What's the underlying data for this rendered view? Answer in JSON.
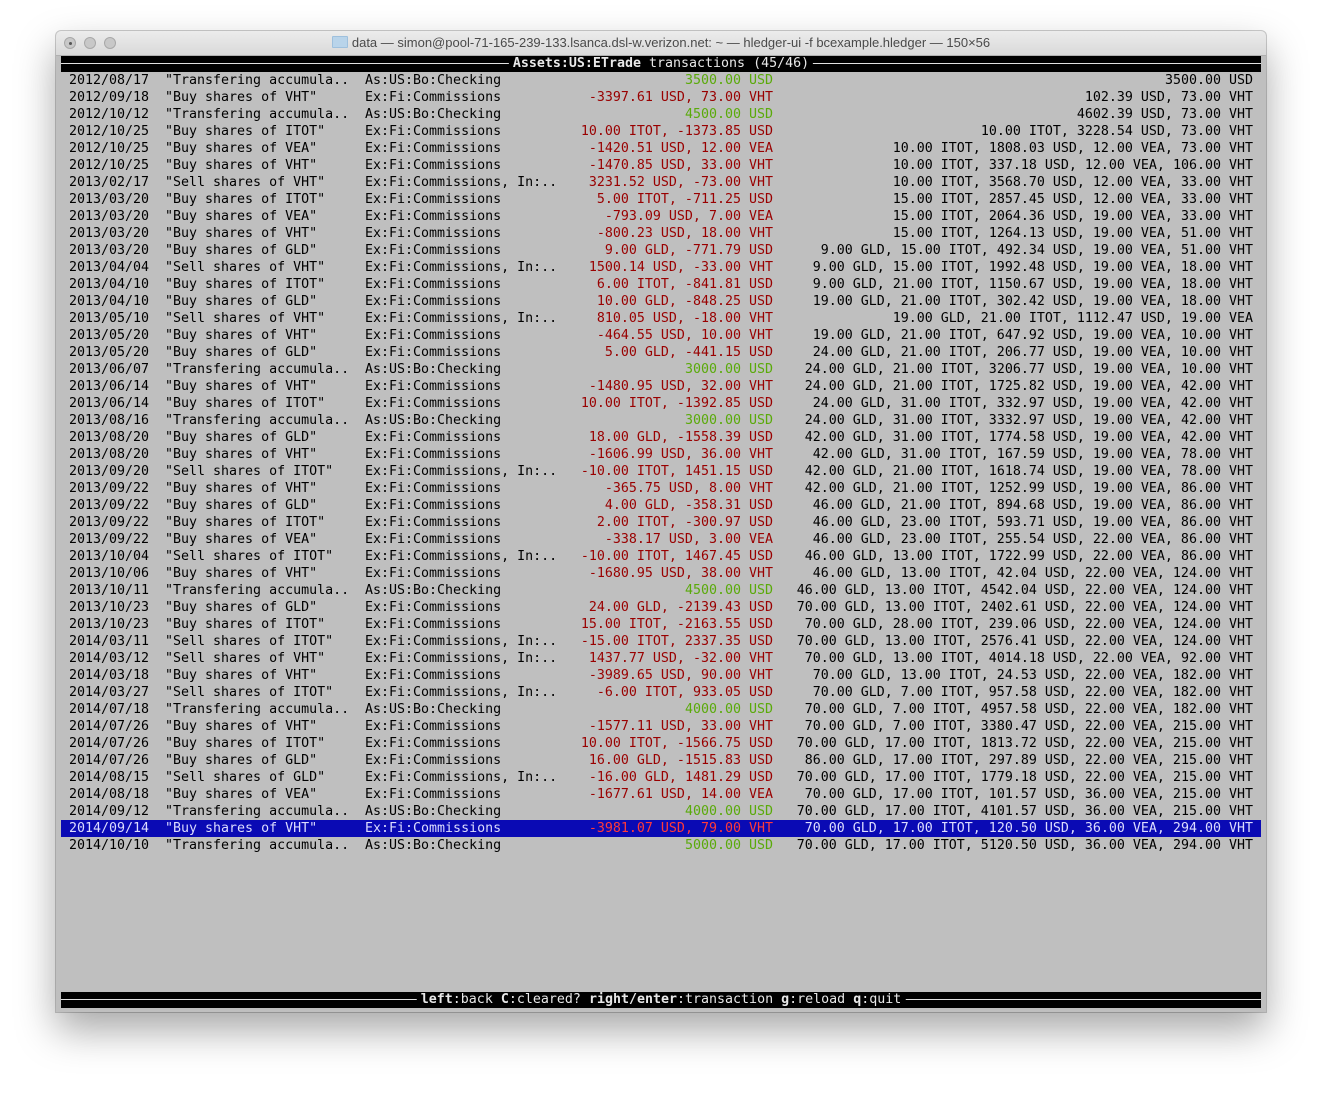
{
  "window": {
    "title": "data — simon@pool-71-165-239-133.lsanca.dsl-w.verizon.net: ~ — hledger-ui -f bcexample.hledger — 150×56"
  },
  "header": {
    "account": "Assets:US:ETrade",
    "label": "transactions",
    "position": "(45/46)"
  },
  "colors": {
    "background": "#bfbfbf",
    "negative": "#990000",
    "positive": "#5aaa0a",
    "selection": "#0a0ab4"
  },
  "selected_index": 44,
  "rows": [
    {
      "date": "2012/08/17",
      "description": "\"Transfering accumula..",
      "account": "As:US:Bo:Checking",
      "amount": "3500.00 USD",
      "amount_color": "green",
      "balance": "3500.00 USD"
    },
    {
      "date": "2012/09/18",
      "description": "\"Buy shares of VHT\"",
      "account": "Ex:Fi:Commissions",
      "amount": "-3397.61 USD, 73.00 VHT",
      "amount_color": "red",
      "balance": "102.39 USD, 73.00 VHT"
    },
    {
      "date": "2012/10/12",
      "description": "\"Transfering accumula..",
      "account": "As:US:Bo:Checking",
      "amount": "4500.00 USD",
      "amount_color": "green",
      "balance": "4602.39 USD, 73.00 VHT"
    },
    {
      "date": "2012/10/25",
      "description": "\"Buy shares of ITOT\"",
      "account": "Ex:Fi:Commissions",
      "amount": "10.00 ITOT, -1373.85 USD",
      "amount_color": "red",
      "balance": "10.00 ITOT, 3228.54 USD, 73.00 VHT"
    },
    {
      "date": "2012/10/25",
      "description": "\"Buy shares of VEA\"",
      "account": "Ex:Fi:Commissions",
      "amount": "-1420.51 USD, 12.00 VEA",
      "amount_color": "red",
      "balance": "10.00 ITOT, 1808.03 USD, 12.00 VEA, 73.00 VHT"
    },
    {
      "date": "2012/10/25",
      "description": "\"Buy shares of VHT\"",
      "account": "Ex:Fi:Commissions",
      "amount": "-1470.85 USD, 33.00 VHT",
      "amount_color": "red",
      "balance": "10.00 ITOT, 337.18 USD, 12.00 VEA, 106.00 VHT"
    },
    {
      "date": "2013/02/17",
      "description": "\"Sell shares of VHT\"",
      "account": "Ex:Fi:Commissions, In:..",
      "amount": "3231.52 USD, -73.00 VHT",
      "amount_color": "red",
      "balance": "10.00 ITOT, 3568.70 USD, 12.00 VEA, 33.00 VHT"
    },
    {
      "date": "2013/03/20",
      "description": "\"Buy shares of ITOT\"",
      "account": "Ex:Fi:Commissions",
      "amount": "5.00 ITOT, -711.25 USD",
      "amount_color": "red",
      "balance": "15.00 ITOT, 2857.45 USD, 12.00 VEA, 33.00 VHT"
    },
    {
      "date": "2013/03/20",
      "description": "\"Buy shares of VEA\"",
      "account": "Ex:Fi:Commissions",
      "amount": "-793.09 USD, 7.00 VEA",
      "amount_color": "red",
      "balance": "15.00 ITOT, 2064.36 USD, 19.00 VEA, 33.00 VHT"
    },
    {
      "date": "2013/03/20",
      "description": "\"Buy shares of VHT\"",
      "account": "Ex:Fi:Commissions",
      "amount": "-800.23 USD, 18.00 VHT",
      "amount_color": "red",
      "balance": "15.00 ITOT, 1264.13 USD, 19.00 VEA, 51.00 VHT"
    },
    {
      "date": "2013/03/20",
      "description": "\"Buy shares of GLD\"",
      "account": "Ex:Fi:Commissions",
      "amount": "9.00 GLD, -771.79 USD",
      "amount_color": "red",
      "balance": "9.00 GLD, 15.00 ITOT, 492.34 USD, 19.00 VEA, 51.00 VHT"
    },
    {
      "date": "2013/04/04",
      "description": "\"Sell shares of VHT\"",
      "account": "Ex:Fi:Commissions, In:..",
      "amount": "1500.14 USD, -33.00 VHT",
      "amount_color": "red",
      "balance": "9.00 GLD, 15.00 ITOT, 1992.48 USD, 19.00 VEA, 18.00 VHT"
    },
    {
      "date": "2013/04/10",
      "description": "\"Buy shares of ITOT\"",
      "account": "Ex:Fi:Commissions",
      "amount": "6.00 ITOT, -841.81 USD",
      "amount_color": "red",
      "balance": "9.00 GLD, 21.00 ITOT, 1150.67 USD, 19.00 VEA, 18.00 VHT"
    },
    {
      "date": "2013/04/10",
      "description": "\"Buy shares of GLD\"",
      "account": "Ex:Fi:Commissions",
      "amount": "10.00 GLD, -848.25 USD",
      "amount_color": "red",
      "balance": "19.00 GLD, 21.00 ITOT, 302.42 USD, 19.00 VEA, 18.00 VHT"
    },
    {
      "date": "2013/05/10",
      "description": "\"Sell shares of VHT\"",
      "account": "Ex:Fi:Commissions, In:..",
      "amount": "810.05 USD, -18.00 VHT",
      "amount_color": "red",
      "balance": "19.00 GLD, 21.00 ITOT, 1112.47 USD, 19.00 VEA"
    },
    {
      "date": "2013/05/20",
      "description": "\"Buy shares of VHT\"",
      "account": "Ex:Fi:Commissions",
      "amount": "-464.55 USD, 10.00 VHT",
      "amount_color": "red",
      "balance": "19.00 GLD, 21.00 ITOT, 647.92 USD, 19.00 VEA, 10.00 VHT"
    },
    {
      "date": "2013/05/20",
      "description": "\"Buy shares of GLD\"",
      "account": "Ex:Fi:Commissions",
      "amount": "5.00 GLD, -441.15 USD",
      "amount_color": "red",
      "balance": "24.00 GLD, 21.00 ITOT, 206.77 USD, 19.00 VEA, 10.00 VHT"
    },
    {
      "date": "2013/06/07",
      "description": "\"Transfering accumula..",
      "account": "As:US:Bo:Checking",
      "amount": "3000.00 USD",
      "amount_color": "green",
      "balance": "24.00 GLD, 21.00 ITOT, 3206.77 USD, 19.00 VEA, 10.00 VHT"
    },
    {
      "date": "2013/06/14",
      "description": "\"Buy shares of VHT\"",
      "account": "Ex:Fi:Commissions",
      "amount": "-1480.95 USD, 32.00 VHT",
      "amount_color": "red",
      "balance": "24.00 GLD, 21.00 ITOT, 1725.82 USD, 19.00 VEA, 42.00 VHT"
    },
    {
      "date": "2013/06/14",
      "description": "\"Buy shares of ITOT\"",
      "account": "Ex:Fi:Commissions",
      "amount": "10.00 ITOT, -1392.85 USD",
      "amount_color": "red",
      "balance": "24.00 GLD, 31.00 ITOT, 332.97 USD, 19.00 VEA, 42.00 VHT"
    },
    {
      "date": "2013/08/16",
      "description": "\"Transfering accumula..",
      "account": "As:US:Bo:Checking",
      "amount": "3000.00 USD",
      "amount_color": "green",
      "balance": "24.00 GLD, 31.00 ITOT, 3332.97 USD, 19.00 VEA, 42.00 VHT"
    },
    {
      "date": "2013/08/20",
      "description": "\"Buy shares of GLD\"",
      "account": "Ex:Fi:Commissions",
      "amount": "18.00 GLD, -1558.39 USD",
      "amount_color": "red",
      "balance": "42.00 GLD, 31.00 ITOT, 1774.58 USD, 19.00 VEA, 42.00 VHT"
    },
    {
      "date": "2013/08/20",
      "description": "\"Buy shares of VHT\"",
      "account": "Ex:Fi:Commissions",
      "amount": "-1606.99 USD, 36.00 VHT",
      "amount_color": "red",
      "balance": "42.00 GLD, 31.00 ITOT, 167.59 USD, 19.00 VEA, 78.00 VHT"
    },
    {
      "date": "2013/09/20",
      "description": "\"Sell shares of ITOT\"",
      "account": "Ex:Fi:Commissions, In:..",
      "amount": "-10.00 ITOT, 1451.15 USD",
      "amount_color": "red",
      "balance": "42.00 GLD, 21.00 ITOT, 1618.74 USD, 19.00 VEA, 78.00 VHT"
    },
    {
      "date": "2013/09/22",
      "description": "\"Buy shares of VHT\"",
      "account": "Ex:Fi:Commissions",
      "amount": "-365.75 USD, 8.00 VHT",
      "amount_color": "red",
      "balance": "42.00 GLD, 21.00 ITOT, 1252.99 USD, 19.00 VEA, 86.00 VHT"
    },
    {
      "date": "2013/09/22",
      "description": "\"Buy shares of GLD\"",
      "account": "Ex:Fi:Commissions",
      "amount": "4.00 GLD, -358.31 USD",
      "amount_color": "red",
      "balance": "46.00 GLD, 21.00 ITOT, 894.68 USD, 19.00 VEA, 86.00 VHT"
    },
    {
      "date": "2013/09/22",
      "description": "\"Buy shares of ITOT\"",
      "account": "Ex:Fi:Commissions",
      "amount": "2.00 ITOT, -300.97 USD",
      "amount_color": "red",
      "balance": "46.00 GLD, 23.00 ITOT, 593.71 USD, 19.00 VEA, 86.00 VHT"
    },
    {
      "date": "2013/09/22",
      "description": "\"Buy shares of VEA\"",
      "account": "Ex:Fi:Commissions",
      "amount": "-338.17 USD, 3.00 VEA",
      "amount_color": "red",
      "balance": "46.00 GLD, 23.00 ITOT, 255.54 USD, 22.00 VEA, 86.00 VHT"
    },
    {
      "date": "2013/10/04",
      "description": "\"Sell shares of ITOT\"",
      "account": "Ex:Fi:Commissions, In:..",
      "amount": "-10.00 ITOT, 1467.45 USD",
      "amount_color": "red",
      "balance": "46.00 GLD, 13.00 ITOT, 1722.99 USD, 22.00 VEA, 86.00 VHT"
    },
    {
      "date": "2013/10/06",
      "description": "\"Buy shares of VHT\"",
      "account": "Ex:Fi:Commissions",
      "amount": "-1680.95 USD, 38.00 VHT",
      "amount_color": "red",
      "balance": "46.00 GLD, 13.00 ITOT, 42.04 USD, 22.00 VEA, 124.00 VHT"
    },
    {
      "date": "2013/10/11",
      "description": "\"Transfering accumula..",
      "account": "As:US:Bo:Checking",
      "amount": "4500.00 USD",
      "amount_color": "green",
      "balance": "46.00 GLD, 13.00 ITOT, 4542.04 USD, 22.00 VEA, 124.00 VHT"
    },
    {
      "date": "2013/10/23",
      "description": "\"Buy shares of GLD\"",
      "account": "Ex:Fi:Commissions",
      "amount": "24.00 GLD, -2139.43 USD",
      "amount_color": "red",
      "balance": "70.00 GLD, 13.00 ITOT, 2402.61 USD, 22.00 VEA, 124.00 VHT"
    },
    {
      "date": "2013/10/23",
      "description": "\"Buy shares of ITOT\"",
      "account": "Ex:Fi:Commissions",
      "amount": "15.00 ITOT, -2163.55 USD",
      "amount_color": "red",
      "balance": "70.00 GLD, 28.00 ITOT, 239.06 USD, 22.00 VEA, 124.00 VHT"
    },
    {
      "date": "2014/03/11",
      "description": "\"Sell shares of ITOT\"",
      "account": "Ex:Fi:Commissions, In:..",
      "amount": "-15.00 ITOT, 2337.35 USD",
      "amount_color": "red",
      "balance": "70.00 GLD, 13.00 ITOT, 2576.41 USD, 22.00 VEA, 124.00 VHT"
    },
    {
      "date": "2014/03/12",
      "description": "\"Sell shares of VHT\"",
      "account": "Ex:Fi:Commissions, In:..",
      "amount": "1437.77 USD, -32.00 VHT",
      "amount_color": "red",
      "balance": "70.00 GLD, 13.00 ITOT, 4014.18 USD, 22.00 VEA, 92.00 VHT"
    },
    {
      "date": "2014/03/18",
      "description": "\"Buy shares of VHT\"",
      "account": "Ex:Fi:Commissions",
      "amount": "-3989.65 USD, 90.00 VHT",
      "amount_color": "red",
      "balance": "70.00 GLD, 13.00 ITOT, 24.53 USD, 22.00 VEA, 182.00 VHT"
    },
    {
      "date": "2014/03/27",
      "description": "\"Sell shares of ITOT\"",
      "account": "Ex:Fi:Commissions, In:..",
      "amount": "-6.00 ITOT, 933.05 USD",
      "amount_color": "red",
      "balance": "70.00 GLD, 7.00 ITOT, 957.58 USD, 22.00 VEA, 182.00 VHT"
    },
    {
      "date": "2014/07/18",
      "description": "\"Transfering accumula..",
      "account": "As:US:Bo:Checking",
      "amount": "4000.00 USD",
      "amount_color": "green",
      "balance": "70.00 GLD, 7.00 ITOT, 4957.58 USD, 22.00 VEA, 182.00 VHT"
    },
    {
      "date": "2014/07/26",
      "description": "\"Buy shares of VHT\"",
      "account": "Ex:Fi:Commissions",
      "amount": "-1577.11 USD, 33.00 VHT",
      "amount_color": "red",
      "balance": "70.00 GLD, 7.00 ITOT, 3380.47 USD, 22.00 VEA, 215.00 VHT"
    },
    {
      "date": "2014/07/26",
      "description": "\"Buy shares of ITOT\"",
      "account": "Ex:Fi:Commissions",
      "amount": "10.00 ITOT, -1566.75 USD",
      "amount_color": "red",
      "balance": "70.00 GLD, 17.00 ITOT, 1813.72 USD, 22.00 VEA, 215.00 VHT"
    },
    {
      "date": "2014/07/26",
      "description": "\"Buy shares of GLD\"",
      "account": "Ex:Fi:Commissions",
      "amount": "16.00 GLD, -1515.83 USD",
      "amount_color": "red",
      "balance": "86.00 GLD, 17.00 ITOT, 297.89 USD, 22.00 VEA, 215.00 VHT"
    },
    {
      "date": "2014/08/15",
      "description": "\"Sell shares of GLD\"",
      "account": "Ex:Fi:Commissions, In:..",
      "amount": "-16.00 GLD, 1481.29 USD",
      "amount_color": "red",
      "balance": "70.00 GLD, 17.00 ITOT, 1779.18 USD, 22.00 VEA, 215.00 VHT"
    },
    {
      "date": "2014/08/18",
      "description": "\"Buy shares of VEA\"",
      "account": "Ex:Fi:Commissions",
      "amount": "-1677.61 USD, 14.00 VEA",
      "amount_color": "red",
      "balance": "70.00 GLD, 17.00 ITOT, 101.57 USD, 36.00 VEA, 215.00 VHT"
    },
    {
      "date": "2014/09/12",
      "description": "\"Transfering accumula..",
      "account": "As:US:Bo:Checking",
      "amount": "4000.00 USD",
      "amount_color": "green",
      "balance": "70.00 GLD, 17.00 ITOT, 4101.57 USD, 36.00 VEA, 215.00 VHT"
    },
    {
      "date": "2014/09/14",
      "description": "\"Buy shares of VHT\"",
      "account": "Ex:Fi:Commissions",
      "amount": "-3981.07 USD, 79.00 VHT",
      "amount_color": "red",
      "balance": "70.00 GLD, 17.00 ITOT, 120.50 USD, 36.00 VEA, 294.00 VHT"
    },
    {
      "date": "2014/10/10",
      "description": "\"Transfering accumula..",
      "account": "As:US:Bo:Checking",
      "amount": "5000.00 USD",
      "amount_color": "green",
      "balance": "70.00 GLD, 17.00 ITOT, 5120.50 USD, 36.00 VEA, 294.00 VHT"
    }
  ],
  "footer": {
    "keys": [
      {
        "key": "left",
        "action": "back"
      },
      {
        "key": "C",
        "action": "cleared?"
      },
      {
        "key": "right/enter",
        "action": "transaction"
      },
      {
        "key": "g",
        "action": "reload"
      },
      {
        "key": "q",
        "action": "quit"
      }
    ]
  }
}
